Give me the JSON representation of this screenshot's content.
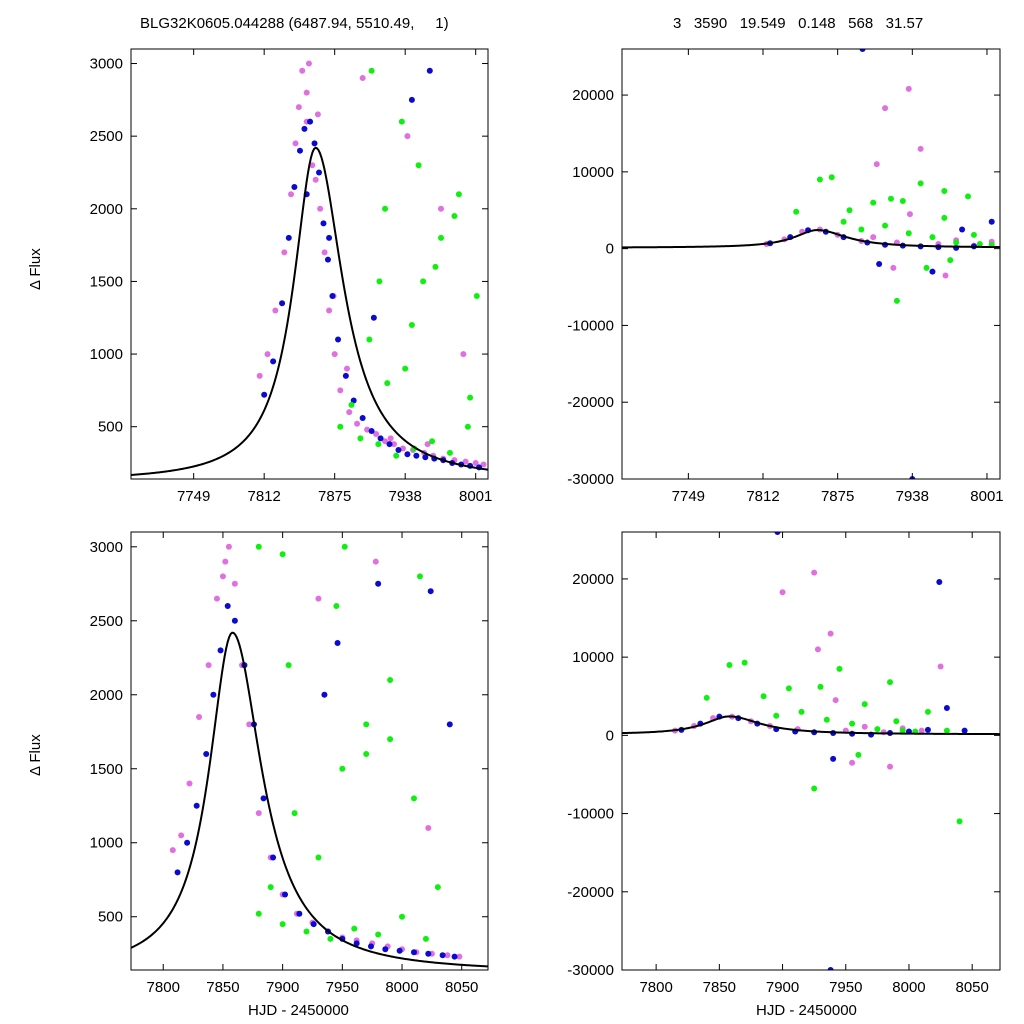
{
  "header": {
    "left": "BLG32K0605.044288 (6487.94, 5510.49,     1)",
    "right": "3   3590   19.549   0.148   568   31.57"
  },
  "ylabels": {
    "top": "Δ Flux",
    "bottom": "Δ Flux"
  },
  "xlabels": {
    "left": "HJD - 2450000",
    "right": "HJD - 2450000"
  },
  "colors": {
    "series_a": "#e070e0",
    "series_b": "#0a0ad0",
    "series_c": "#10f010",
    "model": "#000000"
  },
  "model": {
    "t0": 7858,
    "peak": 2420,
    "base": 120,
    "width_left": 24,
    "width_right": 30
  },
  "chart_data": [
    {
      "panel": "top-left",
      "type": "scatter",
      "xlim": [
        7693,
        8012
      ],
      "ylim": [
        140,
        3100
      ],
      "xticks": [
        7749,
        7812,
        7875,
        7938,
        8001
      ],
      "xtick_labels": [
        "7749",
        "7812",
        "7875",
        "7938",
        "8001"
      ],
      "yticks": [
        500,
        1000,
        1500,
        2000,
        2500,
        3000
      ],
      "ytick_labels": [
        "500",
        "1000",
        "1500",
        "2000",
        "2500",
        "3000"
      ],
      "series": [
        {
          "color": "#e070e0",
          "x": [
            7808,
            7815,
            7822,
            7830,
            7836,
            7840,
            7843,
            7846,
            7850,
            7852,
            7855,
            7858,
            7862,
            7866,
            7870,
            7875,
            7880,
            7888,
            7895,
            7904,
            7912,
            7920,
            7928,
            7936,
            7945,
            7955,
            7963,
            7972,
            7982,
            7992,
            8001,
            8008,
            7900,
            7940,
            7970,
            7850,
            7860,
            7874,
            7886,
            7925,
            7958,
            7990
          ],
          "y": [
            850,
            1000,
            1300,
            1700,
            2100,
            2450,
            2700,
            2950,
            2600,
            3000,
            2300,
            2200,
            2000,
            1700,
            1300,
            1000,
            750,
            600,
            520,
            480,
            450,
            400,
            380,
            350,
            340,
            320,
            300,
            280,
            270,
            260,
            250,
            240,
            2900,
            2500,
            2000,
            2800,
            2650,
            1400,
            900,
            420,
            380,
            1000
          ]
        },
        {
          "color": "#0a0ad0",
          "x": [
            7812,
            7820,
            7828,
            7834,
            7839,
            7844,
            7848,
            7853,
            7857,
            7861,
            7865,
            7869,
            7873,
            7878,
            7885,
            7892,
            7900,
            7908,
            7916,
            7924,
            7932,
            7940,
            7948,
            7956,
            7964,
            7972,
            7980,
            7988,
            7996,
            8004,
            7960,
            7910,
            7850,
            7870,
            7944
          ],
          "y": [
            720,
            950,
            1350,
            1800,
            2150,
            2400,
            2550,
            2600,
            2450,
            2250,
            1900,
            1650,
            1400,
            1100,
            850,
            680,
            560,
            470,
            420,
            380,
            340,
            310,
            300,
            290,
            280,
            270,
            250,
            240,
            230,
            220,
            2950,
            1250,
            2100,
            1800,
            2750
          ]
        },
        {
          "color": "#10f010",
          "x": [
            7880,
            7890,
            7898,
            7906,
            7914,
            7922,
            7930,
            7938,
            7946,
            7954,
            7962,
            7970,
            7978,
            7986,
            7994,
            8002,
            7908,
            7920,
            7935,
            7950,
            7965,
            7982,
            7996,
            7915,
            7944
          ],
          "y": [
            500,
            650,
            420,
            1100,
            380,
            800,
            300,
            900,
            350,
            1500,
            400,
            1800,
            320,
            2100,
            500,
            1400,
            2950,
            2000,
            2600,
            2300,
            1600,
            1950,
            700,
            1500,
            1200
          ]
        }
      ]
    },
    {
      "panel": "top-right",
      "type": "scatter",
      "xlim": [
        7693,
        8012
      ],
      "ylim": [
        -30000,
        26000
      ],
      "xticks": [
        7749,
        7812,
        7875,
        7938,
        8001
      ],
      "xtick_labels": [
        "7749",
        "7812",
        "7875",
        "7938",
        "8001"
      ],
      "yticks": [
        -30000,
        -20000,
        -10000,
        0,
        10000,
        20000
      ],
      "ytick_labels": [
        "-30000",
        "-20000",
        "-10000",
        "0",
        "10000",
        "20000"
      ],
      "series": [
        {
          "color": "#e070e0",
          "x": [
            7815,
            7830,
            7845,
            7860,
            7875,
            7895,
            7905,
            7915,
            7925,
            7935,
            7945,
            7960,
            7975,
            7990,
            8005,
            7908,
            7922,
            7936,
            7966
          ],
          "y": [
            600,
            1200,
            2200,
            2500,
            1800,
            1000,
            1500,
            18300,
            800,
            20800,
            13000,
            600,
            1100,
            400,
            900,
            11000,
            -2500,
            4500,
            -3500
          ]
        },
        {
          "color": "#0a0ad0",
          "x": [
            7818,
            7835,
            7850,
            7865,
            7880,
            7900,
            7915,
            7930,
            7945,
            7960,
            7975,
            7990,
            8005,
            7896,
            7938,
            7955,
            7980,
            7910
          ],
          "y": [
            700,
            1500,
            2400,
            2200,
            1500,
            800,
            500,
            400,
            300,
            200,
            100,
            300,
            3500,
            26000,
            -30000,
            -3000,
            2500,
            -2000
          ]
        },
        {
          "color": "#10f010",
          "x": [
            7840,
            7860,
            7870,
            7885,
            7895,
            7905,
            7915,
            7925,
            7935,
            7945,
            7955,
            7965,
            7975,
            7985,
            7995,
            8005,
            7880,
            7920,
            7950,
            7970,
            7990,
            7930,
            7965
          ],
          "y": [
            4800,
            9000,
            9300,
            5000,
            2500,
            6000,
            3000,
            -6800,
            2000,
            8500,
            1500,
            4000,
            800,
            6800,
            600,
            500,
            3500,
            6500,
            -2500,
            -1500,
            1800,
            6200,
            7500
          ]
        }
      ]
    },
    {
      "panel": "bottom-left",
      "type": "scatter",
      "xlim": [
        7773,
        8072
      ],
      "ylim": [
        140,
        3100
      ],
      "xticks": [
        7800,
        7850,
        7900,
        7950,
        8000,
        8050
      ],
      "xtick_labels": [
        "7800",
        "7850",
        "7900",
        "7950",
        "8000",
        "8050"
      ],
      "yticks": [
        500,
        1000,
        1500,
        2000,
        2500,
        3000
      ],
      "ytick_labels": [
        "500",
        "1000",
        "1500",
        "2000",
        "2500",
        "3000"
      ],
      "series": [
        {
          "color": "#e070e0",
          "x": [
            7808,
            7815,
            7822,
            7830,
            7838,
            7845,
            7850,
            7855,
            7860,
            7866,
            7872,
            7880,
            7890,
            7900,
            7912,
            7925,
            7938,
            7950,
            7962,
            7975,
            7988,
            8000,
            8012,
            8025,
            8038,
            8048,
            7852,
            7930,
            7978,
            8022
          ],
          "y": [
            950,
            1050,
            1400,
            1850,
            2200,
            2650,
            2800,
            3000,
            2750,
            2200,
            1800,
            1200,
            900,
            650,
            520,
            460,
            400,
            360,
            340,
            320,
            300,
            280,
            260,
            250,
            240,
            230,
            2900,
            2650,
            2900,
            1100
          ]
        },
        {
          "color": "#0a0ad0",
          "x": [
            7812,
            7820,
            7828,
            7836,
            7842,
            7848,
            7854,
            7860,
            7868,
            7876,
            7884,
            7892,
            7902,
            7914,
            7926,
            7938,
            7950,
            7962,
            7974,
            7986,
            7998,
            8010,
            8022,
            8034,
            8044,
            7980,
            8024,
            8040,
            7946,
            7935
          ],
          "y": [
            800,
            1000,
            1250,
            1600,
            2000,
            2300,
            2600,
            2500,
            2200,
            1800,
            1300,
            900,
            650,
            520,
            450,
            400,
            350,
            320,
            300,
            280,
            270,
            260,
            250,
            240,
            230,
            2750,
            2700,
            1800,
            2350,
            2000
          ]
        },
        {
          "color": "#10f010",
          "x": [
            7880,
            7890,
            7900,
            7910,
            7920,
            7930,
            7940,
            7950,
            7960,
            7970,
            7980,
            7990,
            8000,
            8010,
            8020,
            8030,
            7880,
            7900,
            7945,
            7990,
            8015,
            7952,
            7905,
            7970
          ],
          "y": [
            520,
            700,
            450,
            1200,
            400,
            900,
            350,
            1500,
            420,
            1800,
            380,
            2100,
            500,
            1300,
            350,
            700,
            3000,
            2950,
            2600,
            1700,
            2800,
            3000,
            2200,
            1600
          ]
        }
      ]
    },
    {
      "panel": "bottom-right",
      "type": "scatter",
      "xlim": [
        7773,
        8072
      ],
      "ylim": [
        -30000,
        26000
      ],
      "xticks": [
        7800,
        7850,
        7900,
        7950,
        8000,
        8050
      ],
      "xtick_labels": [
        "7800",
        "7850",
        "7900",
        "7950",
        "8000",
        "8050"
      ],
      "yticks": [
        -30000,
        -20000,
        -10000,
        0,
        10000,
        20000
      ],
      "ytick_labels": [
        "-30000",
        "-20000",
        "-10000",
        "0",
        "10000",
        "20000"
      ],
      "series": [
        {
          "color": "#e070e0",
          "x": [
            7815,
            7830,
            7845,
            7860,
            7875,
            7890,
            7900,
            7912,
            7925,
            7938,
            7950,
            7965,
            7980,
            7995,
            8010,
            8025,
            7928,
            7942,
            7955,
            7985
          ],
          "y": [
            600,
            1200,
            2200,
            2400,
            1800,
            1200,
            18300,
            800,
            20800,
            13000,
            600,
            1100,
            400,
            900,
            600,
            8800,
            11000,
            4500,
            -3500,
            -4000
          ]
        },
        {
          "color": "#0a0ad0",
          "x": [
            7820,
            7835,
            7850,
            7865,
            7880,
            7895,
            7910,
            7925,
            7940,
            7955,
            7970,
            7985,
            8000,
            8015,
            8030,
            8044,
            7896,
            7938,
            8024,
            7940
          ],
          "y": [
            700,
            1500,
            2400,
            2200,
            1500,
            800,
            500,
            400,
            300,
            200,
            100,
            300,
            500,
            700,
            3500,
            600,
            26000,
            -30000,
            19600,
            -3000
          ]
        },
        {
          "color": "#10f010",
          "x": [
            7840,
            7858,
            7870,
            7885,
            7895,
            7905,
            7915,
            7925,
            7935,
            7945,
            7955,
            7965,
            7975,
            7985,
            7995,
            8005,
            8015,
            8030,
            8040,
            7930,
            7960,
            7990
          ],
          "y": [
            4800,
            9000,
            9300,
            5000,
            2500,
            6000,
            3000,
            -6800,
            2000,
            8500,
            1500,
            4000,
            800,
            6800,
            600,
            500,
            3000,
            600,
            -11000,
            6200,
            -2500,
            1800
          ]
        }
      ]
    }
  ]
}
